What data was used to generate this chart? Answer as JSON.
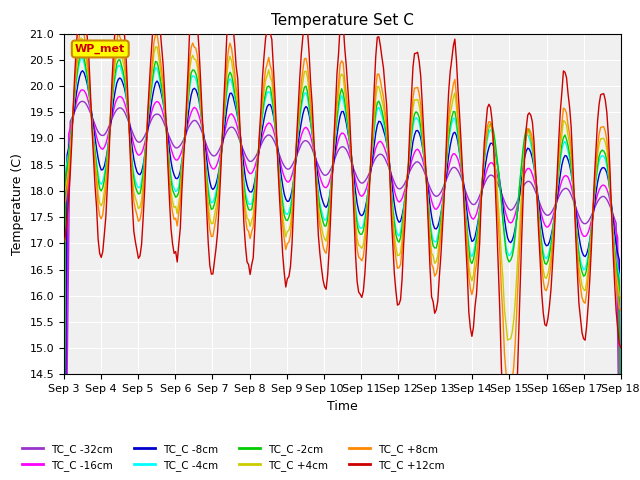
{
  "title": "Temperature Set C",
  "xlabel": "Time",
  "ylabel": "Temperature (C)",
  "ylim": [
    14.5,
    21.0
  ],
  "yticks": [
    14.5,
    15.0,
    15.5,
    16.0,
    16.5,
    17.0,
    17.5,
    18.0,
    18.5,
    19.0,
    19.5,
    20.0,
    20.5,
    21.0
  ],
  "x_labels": [
    "Sep 3",
    "Sep 4",
    "Sep 5",
    "Sep 6",
    "Sep 7",
    "Sep 8",
    "Sep 9",
    "Sep 10",
    "Sep 11",
    "Sep 12",
    "Sep 13",
    "Sep 14",
    "Sep 15",
    "Sep 16",
    "Sep 17",
    "Sep 18"
  ],
  "series_colors": {
    "TC_C -32cm": "#9933cc",
    "TC_C -16cm": "#ff00ff",
    "TC_C -8cm": "#0000cc",
    "TC_C -4cm": "#00ffff",
    "TC_C -2cm": "#00cc00",
    "TC_C +4cm": "#cccc00",
    "TC_C +8cm": "#ff8800",
    "TC_C +12cm": "#cc0000"
  },
  "wp_met_color": "#ffff00",
  "wp_met_border": "#cc8800",
  "wp_met_text": "#cc0000",
  "plot_bg_color": "#ffffff"
}
